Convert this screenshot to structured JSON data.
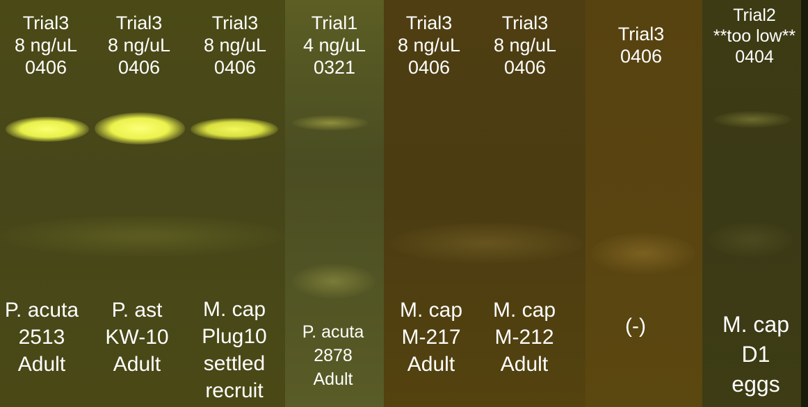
{
  "gel_colors": {
    "panel_a": "#4a4a14",
    "panel_b": "#4d3f12",
    "panel_c": "#54410e",
    "panel_d": "#3a3a14",
    "lane_strip": "#5a5c22",
    "band_bright": "#f6ff58",
    "band_faint": "#c8c060"
  },
  "lanes": [
    {
      "header": [
        "Trial3",
        "8 ng/uL",
        "0406"
      ],
      "sample": [
        "P. acuta",
        "2513",
        "Adult"
      ]
    },
    {
      "header": [
        "Trial3",
        "8 ng/uL",
        "0406"
      ],
      "sample": [
        "P. ast",
        "KW-10",
        "Adult"
      ]
    },
    {
      "header": [
        "Trial3",
        "8 ng/uL",
        "0406"
      ],
      "sample": [
        "M. cap",
        "Plug10",
        "settled",
        "recruit"
      ]
    },
    {
      "header": [
        "Trial1",
        "4 ng/uL",
        "0321"
      ],
      "sample": [
        "P. acuta",
        "2878",
        "Adult"
      ]
    },
    {
      "header": [
        "Trial3",
        "8 ng/uL",
        "0406"
      ],
      "sample": [
        "M. cap",
        "M-217",
        "Adult"
      ]
    },
    {
      "header": [
        "Trial3",
        "8 ng/uL",
        "0406"
      ],
      "sample": [
        "M. cap",
        "M-212",
        "Adult"
      ]
    },
    {
      "header": [
        "Trial3",
        "0406"
      ],
      "sample": [
        "(-)"
      ]
    },
    {
      "header": [
        "Trial2",
        "**too low**",
        "0404"
      ],
      "sample": [
        "M. cap",
        "D1",
        "eggs"
      ]
    }
  ]
}
